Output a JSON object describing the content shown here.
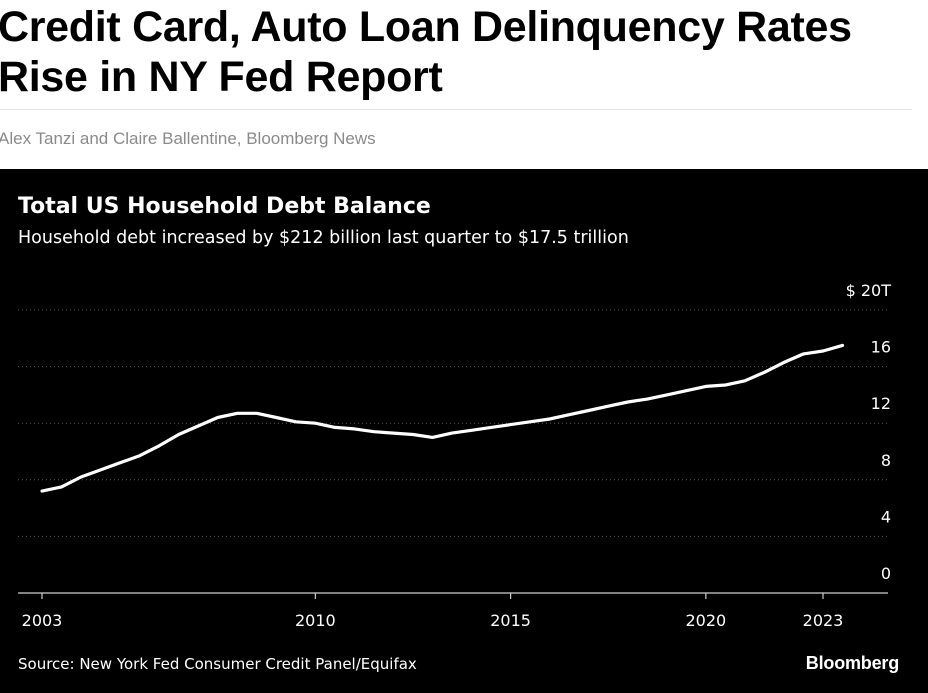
{
  "article": {
    "headline": "Credit Card, Auto Loan Delinquency Rates Rise in NY Fed Report",
    "byline": "Alex Tanzi and Claire Ballentine, Bloomberg News"
  },
  "chart_footer": {
    "source": "Source: New York Fed Consumer Credit Panel/Equifax",
    "brand": "Bloomberg"
  },
  "colors": {
    "chart_background": "#000000",
    "line": "#ffffff",
    "grid": "#5a5a5a"
  },
  "chart_data": {
    "type": "line",
    "title": "Total US Household Debt Balance",
    "subtitle": "Household debt increased by $212 billion last quarter to $17.5 trillion",
    "xlabel": "",
    "ylabel": "",
    "x_ticks": [
      {
        "value": 2003,
        "label": "2003"
      },
      {
        "value": 2010,
        "label": "2010"
      },
      {
        "value": 2015,
        "label": "2015"
      },
      {
        "value": 2020,
        "label": "2020"
      },
      {
        "value": 2023,
        "label": "2023"
      }
    ],
    "y_ticks": [
      {
        "value": 20,
        "label": "$ 20T"
      },
      {
        "value": 16,
        "label": "16"
      },
      {
        "value": 12,
        "label": "12"
      },
      {
        "value": 8,
        "label": "8"
      },
      {
        "value": 4,
        "label": "4"
      },
      {
        "value": 0,
        "label": "0"
      }
    ],
    "xlim": [
      2003,
      2024.5
    ],
    "ylim": [
      0,
      20
    ],
    "grid": true,
    "y_axis_side": "right",
    "series": [
      {
        "x": [
          2003.0,
          2003.5,
          2004.0,
          2004.5,
          2005.0,
          2005.5,
          2006.0,
          2006.5,
          2007.0,
          2007.5,
          2008.0,
          2008.5,
          2009.0,
          2009.5,
          2010.0,
          2010.5,
          2011.0,
          2011.5,
          2012.0,
          2012.5,
          2013.0,
          2013.5,
          2014.0,
          2014.5,
          2015.0,
          2015.5,
          2016.0,
          2016.5,
          2017.0,
          2017.5,
          2018.0,
          2018.5,
          2019.0,
          2019.5,
          2020.0,
          2020.5,
          2021.0,
          2021.5,
          2022.0,
          2022.5,
          2023.0,
          2023.5
        ],
        "values": [
          7.2,
          7.5,
          8.2,
          8.7,
          9.2,
          9.7,
          10.4,
          11.2,
          11.8,
          12.4,
          12.7,
          12.7,
          12.4,
          12.1,
          12.0,
          11.7,
          11.6,
          11.4,
          11.3,
          11.2,
          11.0,
          11.3,
          11.5,
          11.7,
          11.9,
          12.1,
          12.3,
          12.6,
          12.9,
          13.2,
          13.5,
          13.7,
          14.0,
          14.3,
          14.6,
          14.7,
          15.0,
          15.6,
          16.3,
          16.9,
          17.1,
          17.5
        ]
      }
    ]
  }
}
